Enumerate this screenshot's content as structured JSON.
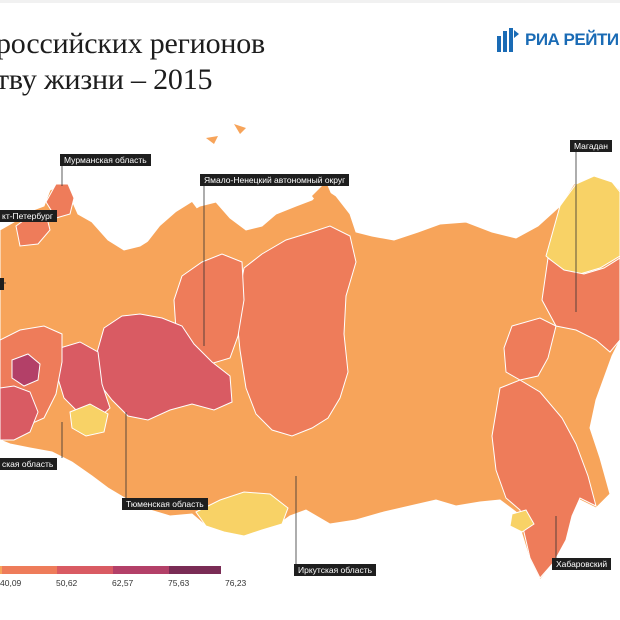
{
  "title": {
    "line1": "российских регионов",
    "line2": "тву жизни – 2015"
  },
  "logo": {
    "text": "РИА РЕЙТИ",
    "icon": "ria-logo-icon",
    "color": "#1a6bb5"
  },
  "labels": {
    "murmansk": "Мурманская область",
    "yamal": "Ямало-Ненецкий автономный округ",
    "spb": "кт-Петербург",
    "magadan": "Магадан",
    "oblast": "ская область",
    "tyumen": "Тюменская область",
    "irkutsk": "Иркутская область",
    "khabarovsk": "Хабаровский"
  },
  "legend": {
    "values": [
      "40,09",
      "50,62",
      "62,57",
      "75,63",
      "76,23"
    ],
    "colors": [
      "#f8d266",
      "#f7a45a",
      "#ee7c5a",
      "#d95b63",
      "#b34068",
      "#7a2c55"
    ]
  }
}
